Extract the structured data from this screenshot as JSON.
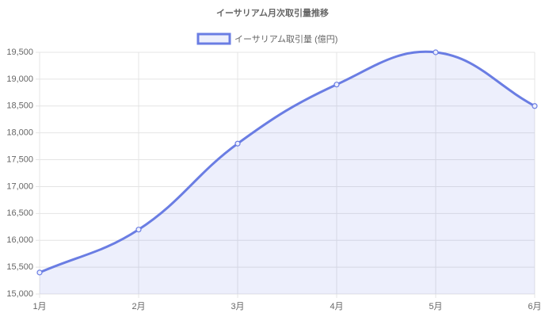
{
  "chart_data": {
    "type": "line",
    "title": "イーサリアム月次取引量推移",
    "categories": [
      "1月",
      "2月",
      "3月",
      "4月",
      "5月",
      "6月"
    ],
    "series": [
      {
        "name": "イーサリアム取引量 (億円)",
        "color": "#6a7de3",
        "values": [
          15400,
          16200,
          17800,
          18900,
          19500,
          18500
        ]
      }
    ],
    "ylim": [
      15000,
      19500
    ],
    "yticks": [
      {
        "value": 15000,
        "label": "15,000"
      },
      {
        "value": 15500,
        "label": "15,500"
      },
      {
        "value": 16000,
        "label": "16,000"
      },
      {
        "value": 16500,
        "label": "16,500"
      },
      {
        "value": 17000,
        "label": "17,000"
      },
      {
        "value": 17500,
        "label": "17,500"
      },
      {
        "value": 18000,
        "label": "18,000"
      },
      {
        "value": 18500,
        "label": "18,500"
      },
      {
        "value": 19000,
        "label": "19,000"
      },
      {
        "value": 19500,
        "label": "19,500"
      }
    ],
    "grid": true,
    "fill": true,
    "legend": "top"
  }
}
